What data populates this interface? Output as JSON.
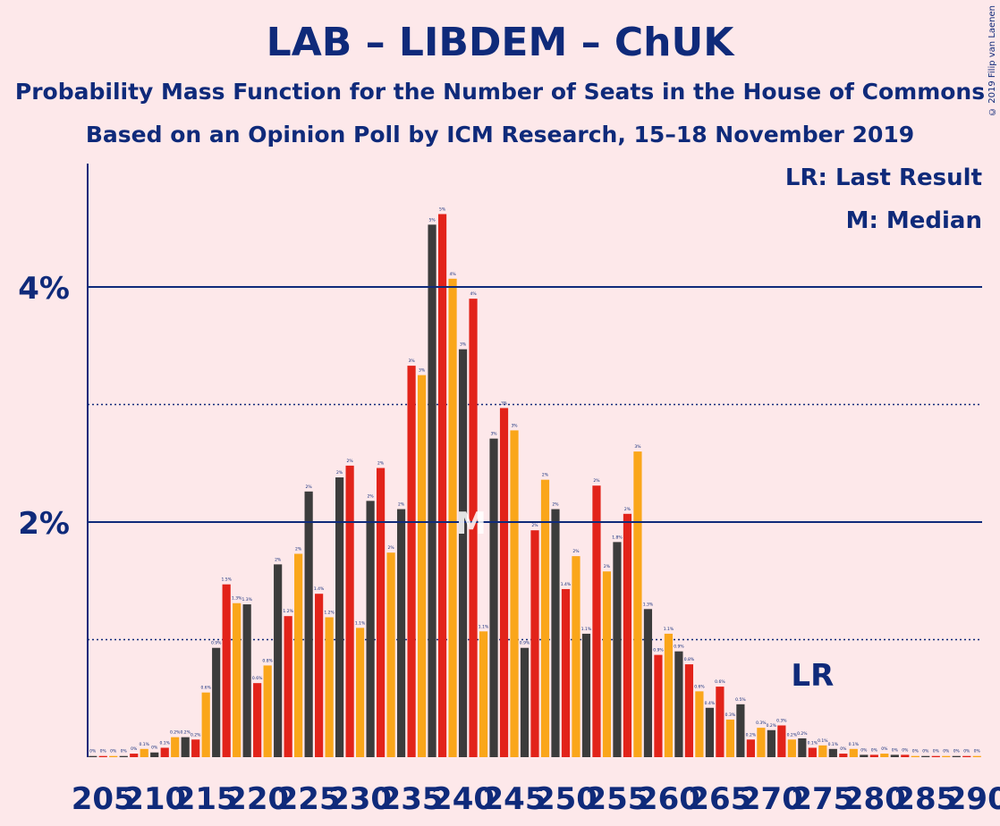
{
  "title": "LAB – LIBDEM – ChUK",
  "subtitle1": "Probability Mass Function for the Number of Seats in the House of Commons",
  "subtitle2": "Based on an Opinion Poll by ICM Research, 15–18 November 2019",
  "copyright": "© 2019 Filip van Laenen",
  "legend": {
    "lr": "LR: Last Result",
    "m": "M: Median"
  },
  "markers": {
    "lr_label": "LR",
    "median_label": "M"
  },
  "colors": {
    "lab": "#e2231a",
    "libdem": "#faa61a",
    "chuk": "#3c3c3c",
    "axis": "#0f2a7a",
    "background": "#fde8ea"
  },
  "chart_data": {
    "type": "bar",
    "xlabel": "",
    "ylabel": "",
    "ylim": [
      0,
      5
    ],
    "yticks": [
      {
        "value": 2,
        "label": "2%"
      },
      {
        "value": 4,
        "label": "4%"
      }
    ],
    "dotted_lines": [
      1,
      3
    ],
    "xticks": [
      205,
      210,
      215,
      220,
      225,
      230,
      235,
      240,
      245,
      250,
      255,
      260,
      265,
      270,
      275,
      280,
      285,
      290
    ],
    "median": 240,
    "last_result": 274,
    "x": [
      204,
      205,
      206,
      207,
      208,
      209,
      210,
      211,
      212,
      213,
      214,
      215,
      216,
      217,
      218,
      219,
      220,
      221,
      222,
      223,
      224,
      225,
      226,
      227,
      228,
      229,
      230,
      231,
      232,
      233,
      234,
      235,
      236,
      237,
      238,
      239,
      240,
      241,
      242,
      243,
      244,
      245,
      246,
      247,
      248,
      249,
      250,
      251,
      252,
      253,
      254,
      255,
      256,
      257,
      258,
      259,
      260,
      261,
      262,
      263,
      264,
      265,
      266,
      267,
      268,
      269,
      270,
      271,
      272,
      273,
      274,
      275,
      276,
      277,
      278,
      279,
      280,
      281,
      282,
      283,
      284,
      285,
      286,
      287,
      288,
      289,
      290
    ],
    "values": [
      0.01,
      0.01,
      0.01,
      0.01,
      0.03,
      0.07,
      0.04,
      0.08,
      0.17,
      0.17,
      0.15,
      0.55,
      0.93,
      1.47,
      1.31,
      1.3,
      0.63,
      0.78,
      1.64,
      1.2,
      1.73,
      2.26,
      1.39,
      1.19,
      2.38,
      2.48,
      1.1,
      2.18,
      2.46,
      1.74,
      2.11,
      3.33,
      3.25,
      4.53,
      4.62,
      4.07,
      3.47,
      3.9,
      1.07,
      2.71,
      2.97,
      2.78,
      0.93,
      1.93,
      2.36,
      2.11,
      1.43,
      1.71,
      1.05,
      2.31,
      1.58,
      1.83,
      2.07,
      2.6,
      1.26,
      0.87,
      1.05,
      0.9,
      0.79,
      0.56,
      0.42,
      0.6,
      0.32,
      0.45,
      0.15,
      0.25,
      0.23,
      0.27,
      0.15,
      0.16,
      0.08,
      0.1,
      0.07,
      0.03,
      0.07,
      0.02,
      0.02,
      0.03,
      0.02,
      0.02,
      0.01,
      0.01,
      0.01,
      0.01,
      0.01,
      0.01,
      0.01
    ],
    "labels": [
      "0%",
      "0%",
      "0%",
      "0%",
      "0%",
      "0.1%",
      "0%",
      "0.1%",
      "0.2%",
      "0.2%",
      "0.2%",
      "0.6%",
      "0.9%",
      "1.5%",
      "1.3%",
      "1.3%",
      "0.6%",
      "0.8%",
      "2%",
      "1.2%",
      "2%",
      "2%",
      "1.4%",
      "1.2%",
      "2%",
      "2%",
      "1.1%",
      "2%",
      "2%",
      "2%",
      "2%",
      "3%",
      "3%",
      "5%",
      "5%",
      "4%",
      "3%",
      "4%",
      "1.1%",
      "3%",
      "3%",
      "3%",
      "0.9%",
      "2%",
      "2%",
      "2%",
      "1.4%",
      "2%",
      "1.1%",
      "2%",
      "2%",
      "1.8%",
      "2%",
      "3%",
      "1.3%",
      "0.9%",
      "1.1%",
      "0.9%",
      "0.8%",
      "0.6%",
      "0.4%",
      "0.6%",
      "0.3%",
      "0.5%",
      "0.2%",
      "0.3%",
      "0.2%",
      "0.3%",
      "0.2%",
      "0.2%",
      "0.1%",
      "0.1%",
      "0.1%",
      "0%",
      "0.1%",
      "0%",
      "0%",
      "0%",
      "0%",
      "0%",
      "0%",
      "0%",
      "0%",
      "0%",
      "0%",
      "0%",
      "0%"
    ]
  }
}
